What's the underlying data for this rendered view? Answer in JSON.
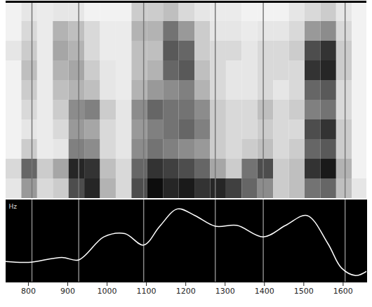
{
  "chart_data": {
    "type": "spectrogram",
    "ylabel": "Hz",
    "xlim": [
      743,
      1660
    ],
    "xticks": [
      800,
      900,
      1000,
      1100,
      1200,
      1300,
      1400,
      1500,
      1600
    ],
    "ylim": [
      0,
      100
    ],
    "tick_labels": "x",
    "segment_boundaries": [
      809,
      928,
      1093,
      1275,
      1397,
      1605
    ],
    "pitch": {
      "color": "#ffffff",
      "x": [
        743,
        800,
        885,
        928,
        992,
        1045,
        1093,
        1134,
        1179,
        1223,
        1275,
        1330,
        1397,
        1454,
        1508,
        1561,
        1596,
        1632,
        1659
      ],
      "values": [
        25,
        24,
        30,
        27,
        55,
        59,
        45,
        68,
        89,
        81,
        68,
        69,
        55,
        69,
        81,
        47,
        17,
        8,
        13
      ]
    },
    "spectrogram": {
      "time_bins": [
        743,
        783,
        823,
        863,
        903,
        943,
        983,
        1023,
        1063,
        1103,
        1143,
        1183,
        1223,
        1263,
        1303,
        1343,
        1383,
        1423,
        1463,
        1503,
        1543,
        1583,
        1623,
        1663
      ],
      "color_range": [
        0,
        100
      ],
      "intensity": [
        [
          10,
          40,
          15,
          20,
          70,
          85,
          30,
          15,
          70,
          95,
          85,
          90,
          80,
          85,
          75,
          60,
          45,
          20,
          25,
          55,
          60,
          25,
          10
        ],
        [
          15,
          60,
          20,
          35,
          85,
          80,
          25,
          15,
          60,
          80,
          75,
          70,
          60,
          35,
          20,
          55,
          70,
          20,
          25,
          80,
          90,
          30,
          5
        ],
        [
          5,
          20,
          8,
          10,
          50,
          45,
          15,
          10,
          45,
          55,
          50,
          45,
          40,
          20,
          15,
          20,
          25,
          15,
          20,
          60,
          65,
          20,
          5
        ],
        [
          5,
          10,
          8,
          15,
          40,
          35,
          15,
          10,
          40,
          50,
          55,
          60,
          50,
          20,
          15,
          15,
          20,
          15,
          15,
          70,
          80,
          20,
          5
        ],
        [
          5,
          15,
          8,
          20,
          45,
          50,
          20,
          10,
          45,
          60,
          55,
          55,
          45,
          20,
          15,
          15,
          25,
          15,
          20,
          50,
          55,
          15,
          5
        ],
        [
          5,
          20,
          8,
          25,
          30,
          25,
          10,
          8,
          30,
          40,
          45,
          50,
          30,
          15,
          10,
          10,
          15,
          10,
          15,
          60,
          65,
          15,
          5
        ],
        [
          5,
          25,
          8,
          30,
          35,
          20,
          10,
          8,
          25,
          30,
          60,
          65,
          25,
          15,
          10,
          10,
          15,
          15,
          15,
          80,
          85,
          20,
          5
        ],
        [
          10,
          20,
          8,
          35,
          30,
          15,
          8,
          8,
          25,
          25,
          65,
          60,
          20,
          15,
          15,
          10,
          15,
          15,
          20,
          70,
          80,
          20,
          5
        ],
        [
          5,
          15,
          8,
          30,
          25,
          15,
          8,
          8,
          30,
          30,
          55,
          40,
          20,
          10,
          10,
          8,
          10,
          10,
          15,
          40,
          45,
          15,
          5
        ],
        [
          5,
          10,
          8,
          10,
          10,
          5,
          5,
          5,
          20,
          20,
          25,
          15,
          10,
          8,
          8,
          5,
          5,
          5,
          10,
          15,
          20,
          10,
          5
        ]
      ]
    }
  }
}
